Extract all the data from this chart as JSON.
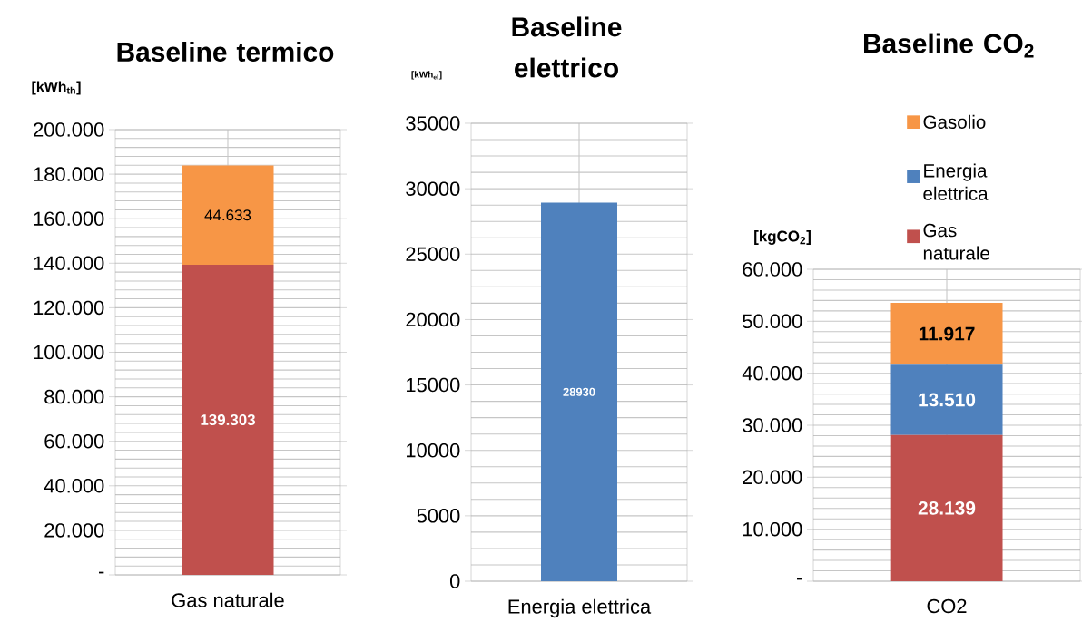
{
  "chart_data": [
    {
      "type": "bar",
      "title": "Baseline termico",
      "ylabel": "[kWh$_{th}$]",
      "categories": [
        "Gas naturale"
      ],
      "stacked": true,
      "series": [
        {
          "color": "#c0504d",
          "values": [
            139303
          ],
          "value_labels": [
            "139.303"
          ]
        },
        {
          "color": "#f79646",
          "values": [
            44633
          ],
          "value_labels": [
            "44.633"
          ]
        }
      ],
      "ylim": [
        0,
        200000
      ],
      "yticks": [
        {
          "value": 0,
          "label": "-"
        },
        {
          "value": 20000,
          "label": "20.000"
        },
        {
          "value": 40000,
          "label": "40.000"
        },
        {
          "value": 60000,
          "label": "60.000"
        },
        {
          "value": 80000,
          "label": "80.000"
        },
        {
          "value": 100000,
          "label": "100.000"
        },
        {
          "value": 120000,
          "label": "120.000"
        },
        {
          "value": 140000,
          "label": "140.000"
        },
        {
          "value": 160000,
          "label": "160.000"
        },
        {
          "value": 180000,
          "label": "180.000"
        },
        {
          "value": 200000,
          "label": "200.000"
        }
      ],
      "grid": true
    },
    {
      "type": "bar",
      "title": "Baseline elettrico",
      "ylabel": "[kWh$_{el}$]",
      "categories": [
        "Energia elettrica"
      ],
      "series": [
        {
          "color": "#4f81bd",
          "values": [
            28930
          ]
        }
      ],
      "data_labels": true,
      "ylim": [
        0,
        35000
      ],
      "yticks": [
        0,
        5000,
        10000,
        15000,
        20000,
        25000,
        30000,
        35000
      ],
      "grid": true
    },
    {
      "type": "bar",
      "title": "Baseline CO$_{2}$",
      "ylabel": "[kgCO$_{2}$]",
      "categories": [
        "CO2"
      ],
      "stacked": true,
      "series": [
        {
          "name": "Gas naturale",
          "color": "#c0504d",
          "values": [
            28139
          ],
          "value_labels": [
            "28.139"
          ]
        },
        {
          "name": "Energia elettrica",
          "color": "#4f81bd",
          "values": [
            13510
          ],
          "value_labels": [
            "13.510"
          ]
        },
        {
          "name": "Gasolio",
          "color": "#f79646",
          "values": [
            11917
          ],
          "value_labels": [
            "11.917"
          ]
        }
      ],
      "ylim": [
        0,
        60000
      ],
      "yticks": [
        {
          "value": 0,
          "label": "-"
        },
        {
          "value": 10000,
          "label": "10.000"
        },
        {
          "value": 20000,
          "label": "20.000"
        },
        {
          "value": 30000,
          "label": "30.000"
        },
        {
          "value": 40000,
          "label": "40.000"
        },
        {
          "value": 50000,
          "label": "50.000"
        },
        {
          "value": 60000,
          "label": "60.000"
        }
      ],
      "grid": true,
      "legend": "top"
    }
  ]
}
